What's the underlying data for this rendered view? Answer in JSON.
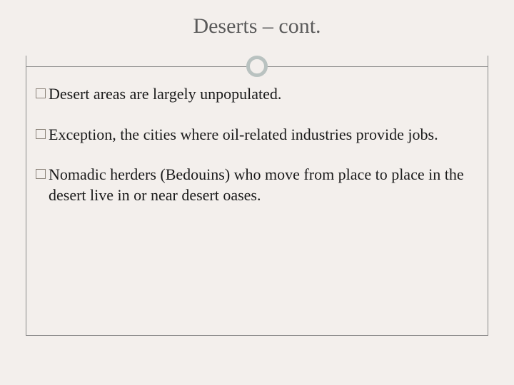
{
  "slide": {
    "title": "Deserts – cont.",
    "title_color": "#5a5a5a",
    "title_fontsize": 30,
    "background_color": "#f3efec",
    "accent_circle_color": "#b9c2c0",
    "border_color": "#8a8a8a",
    "bullet_border_color": "#8a8278",
    "text_color": "#1a1a1a",
    "body_fontsize": 22,
    "bullets": [
      "Desert areas are largely unpopulated.",
      "Exception, the cities where oil-related industries provide jobs.",
      "Nomadic herders (Bedouins) who move from place to place in the desert live in or near desert oases."
    ]
  }
}
